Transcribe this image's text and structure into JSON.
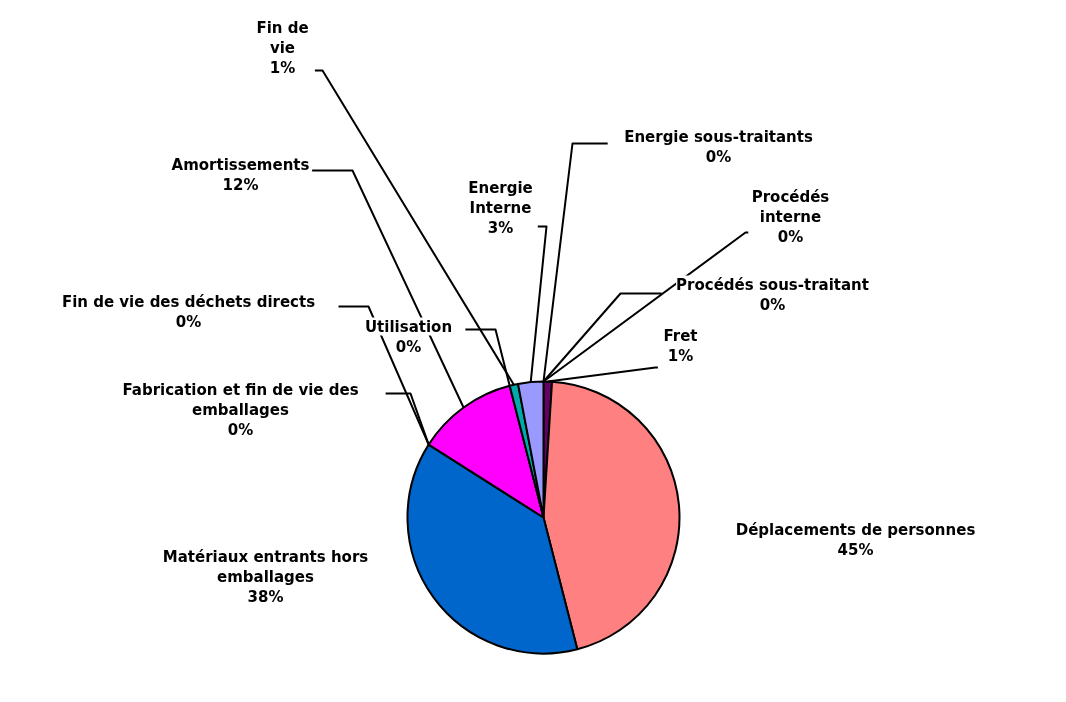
{
  "chart_data": {
    "type": "pie",
    "categories": [
      "Energie sous-traitants",
      "Procédés interne",
      "Procédés sous-traitant",
      "Fret",
      "Déplacements de personnes",
      "Matériaux entrants hors emballages",
      "Fabrication et fin de vie des emballages",
      "Fin de vie des déchets directs",
      "Amortissements",
      "Utilisation",
      "Fin de vie",
      "Energie Interne"
    ],
    "values": [
      0,
      0,
      0,
      1,
      45,
      38,
      0,
      0,
      12,
      0,
      1,
      3
    ],
    "value_labels": [
      "0%",
      "0%",
      "0%",
      "1%",
      "45%",
      "38%",
      "0%",
      "0%",
      "12%",
      "0%",
      "1%",
      "3%"
    ],
    "colors": [
      "#800000",
      "#ffff00",
      "#00ffff",
      "#660066",
      "#ff8080",
      "#0066cc",
      "#ccccff",
      "#993366",
      "#ff00ff",
      "#ffffcc",
      "#00aaaa",
      "#9999ff"
    ]
  }
}
